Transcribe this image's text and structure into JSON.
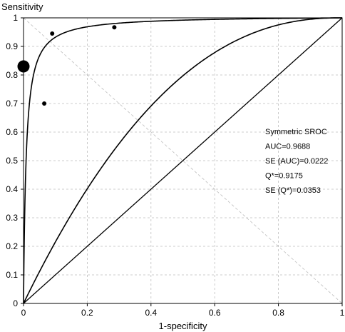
{
  "chart_data": {
    "type": "scatter",
    "title": "",
    "xlabel": "1-specificity",
    "ylabel": "Sensitivity",
    "xlim": [
      0,
      1
    ],
    "ylim": [
      0,
      1
    ],
    "x_ticks": [
      "0",
      "0.2",
      "0.4",
      "0.6",
      "0.8",
      "1"
    ],
    "x_tick_values": [
      0,
      0.2,
      0.4,
      0.6,
      0.8,
      1
    ],
    "y_ticks": [
      "0",
      "0.1",
      "0.2",
      "0.3",
      "0.4",
      "0.5",
      "0.6",
      "0.7",
      "0.8",
      "0.9",
      "1"
    ],
    "y_tick_values": [
      0,
      0.1,
      0.2,
      0.3,
      0.4,
      0.5,
      0.6,
      0.7,
      0.8,
      0.9,
      1
    ],
    "grid": true,
    "points": [
      {
        "x": 0.0,
        "y": 0.83,
        "weight": "large"
      },
      {
        "x": 0.09,
        "y": 0.945,
        "weight": "small"
      },
      {
        "x": 0.285,
        "y": 0.967,
        "weight": "small"
      },
      {
        "x": 0.065,
        "y": 0.7,
        "weight": "small"
      }
    ],
    "sroc_curve": {
      "q_star": 0.9175,
      "auc": 0.9688
    },
    "annotations": [
      "Symmetric SROC",
      "AUC=0.9688",
      "SE (AUC)=0.0222",
      "Q*=0.9175",
      "SE (Q*)=0.0353"
    ],
    "colors": {
      "curve": "#000000",
      "grid": "#bdbdbd",
      "points": "#000000"
    }
  }
}
